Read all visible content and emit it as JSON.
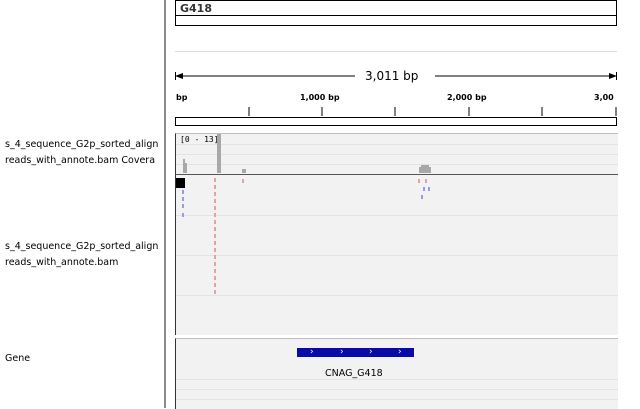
{
  "locus": {
    "name": "G418",
    "span_label": "3,011 bp"
  },
  "ruler": {
    "ticks": [
      {
        "label": "bp"
      },
      {
        "label": "1,000 bp"
      },
      {
        "label": "2,000 bp"
      },
      {
        "label": "3,00"
      }
    ]
  },
  "tracks": {
    "coverage": {
      "name_line1": "s_4_sequence_G2p_sorted_align",
      "name_line2": "reads_with_annote.bam Covera",
      "data_range": "[0 - 13]"
    },
    "alignment": {
      "name_line1": "s_4_sequence_G2p_sorted_align",
      "name_line2": "reads_with_annote.bam"
    },
    "gene": {
      "name": "Gene",
      "feature_label": "CNAG_G418"
    }
  },
  "colors": {
    "gene_feature": "#0a0aa8",
    "coverage": "#a8a8a8",
    "read_forward": "#e8a0a0",
    "read_reverse": "#9a9ae8"
  },
  "icons": {
    "gene_strand": "chevron-right-icon"
  }
}
